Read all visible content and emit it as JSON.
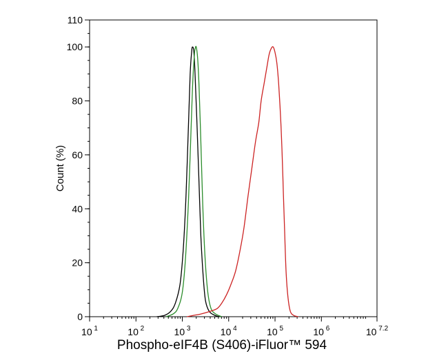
{
  "chart_data": {
    "type": "line",
    "title": "",
    "xlabel": "Phospho-eIF4B (S406)-iFluor™ 594",
    "ylabel": "Count  (%)",
    "x_scale": "log10",
    "xlim": [
      1,
      7.2
    ],
    "ylim": [
      0,
      110
    ],
    "x_ticks": [
      {
        "base": "10",
        "exp": "1",
        "value": 1
      },
      {
        "base": "10",
        "exp": "2",
        "value": 2
      },
      {
        "base": "10",
        "exp": "3",
        "value": 3
      },
      {
        "base": "10",
        "exp": "4",
        "value": 4
      },
      {
        "base": "10",
        "exp": "5",
        "value": 5
      },
      {
        "base": "10",
        "exp": "6",
        "value": 6
      },
      {
        "base": "10",
        "exp": "7.2",
        "value": 7.2
      }
    ],
    "y_ticks": [
      {
        "label": "0",
        "value": 0
      },
      {
        "label": "20",
        "value": 20
      },
      {
        "label": "40",
        "value": 40
      },
      {
        "label": "60",
        "value": 60
      },
      {
        "label": "80",
        "value": 80
      },
      {
        "label": "100",
        "value": 100
      },
      {
        "label": "110",
        "value": 110
      }
    ],
    "grid": false,
    "legend": "none",
    "series": [
      {
        "color": "#000000",
        "points": [
          [
            2.45,
            0
          ],
          [
            2.62,
            0.5
          ],
          [
            2.75,
            2
          ],
          [
            2.85,
            5
          ],
          [
            2.95,
            12
          ],
          [
            3.02,
            25
          ],
          [
            3.08,
            45
          ],
          [
            3.13,
            70
          ],
          [
            3.17,
            90
          ],
          [
            3.2,
            98
          ],
          [
            3.22,
            100
          ],
          [
            3.25,
            98
          ],
          [
            3.28,
            88
          ],
          [
            3.32,
            70
          ],
          [
            3.36,
            50
          ],
          [
            3.4,
            30
          ],
          [
            3.45,
            15
          ],
          [
            3.5,
            6
          ],
          [
            3.58,
            2
          ],
          [
            3.7,
            0.5
          ],
          [
            3.8,
            0
          ]
        ]
      },
      {
        "color": "#2a8c2a",
        "points": [
          [
            2.65,
            0
          ],
          [
            2.8,
            1
          ],
          [
            2.9,
            3
          ],
          [
            3.0,
            9
          ],
          [
            3.07,
            22
          ],
          [
            3.13,
            42
          ],
          [
            3.18,
            65
          ],
          [
            3.22,
            85
          ],
          [
            3.26,
            97
          ],
          [
            3.28,
            99.5
          ],
          [
            3.3,
            100
          ],
          [
            3.33,
            96
          ],
          [
            3.36,
            86
          ],
          [
            3.4,
            65
          ],
          [
            3.44,
            42
          ],
          [
            3.49,
            22
          ],
          [
            3.55,
            9
          ],
          [
            3.62,
            3
          ],
          [
            3.72,
            1
          ],
          [
            3.85,
            0
          ]
        ]
      },
      {
        "color": "#cc2222",
        "points": [
          [
            3.1,
            0
          ],
          [
            3.25,
            0.5
          ],
          [
            3.4,
            1
          ],
          [
            3.6,
            2
          ],
          [
            3.75,
            3
          ],
          [
            3.85,
            5
          ],
          [
            3.95,
            8
          ],
          [
            4.05,
            12
          ],
          [
            4.15,
            17
          ],
          [
            4.25,
            25
          ],
          [
            4.33,
            33
          ],
          [
            4.42,
            45
          ],
          [
            4.5,
            55
          ],
          [
            4.58,
            65
          ],
          [
            4.65,
            72
          ],
          [
            4.7,
            80
          ],
          [
            4.76,
            86
          ],
          [
            4.82,
            92
          ],
          [
            4.87,
            97
          ],
          [
            4.92,
            99.5
          ],
          [
            4.96,
            100
          ],
          [
            5.0,
            98
          ],
          [
            5.04,
            94
          ],
          [
            5.08,
            86
          ],
          [
            5.12,
            74
          ],
          [
            5.15,
            62
          ],
          [
            5.18,
            46
          ],
          [
            5.21,
            30
          ],
          [
            5.24,
            16
          ],
          [
            5.28,
            7
          ],
          [
            5.33,
            2
          ],
          [
            5.4,
            0.5
          ],
          [
            5.5,
            0
          ]
        ]
      }
    ]
  }
}
